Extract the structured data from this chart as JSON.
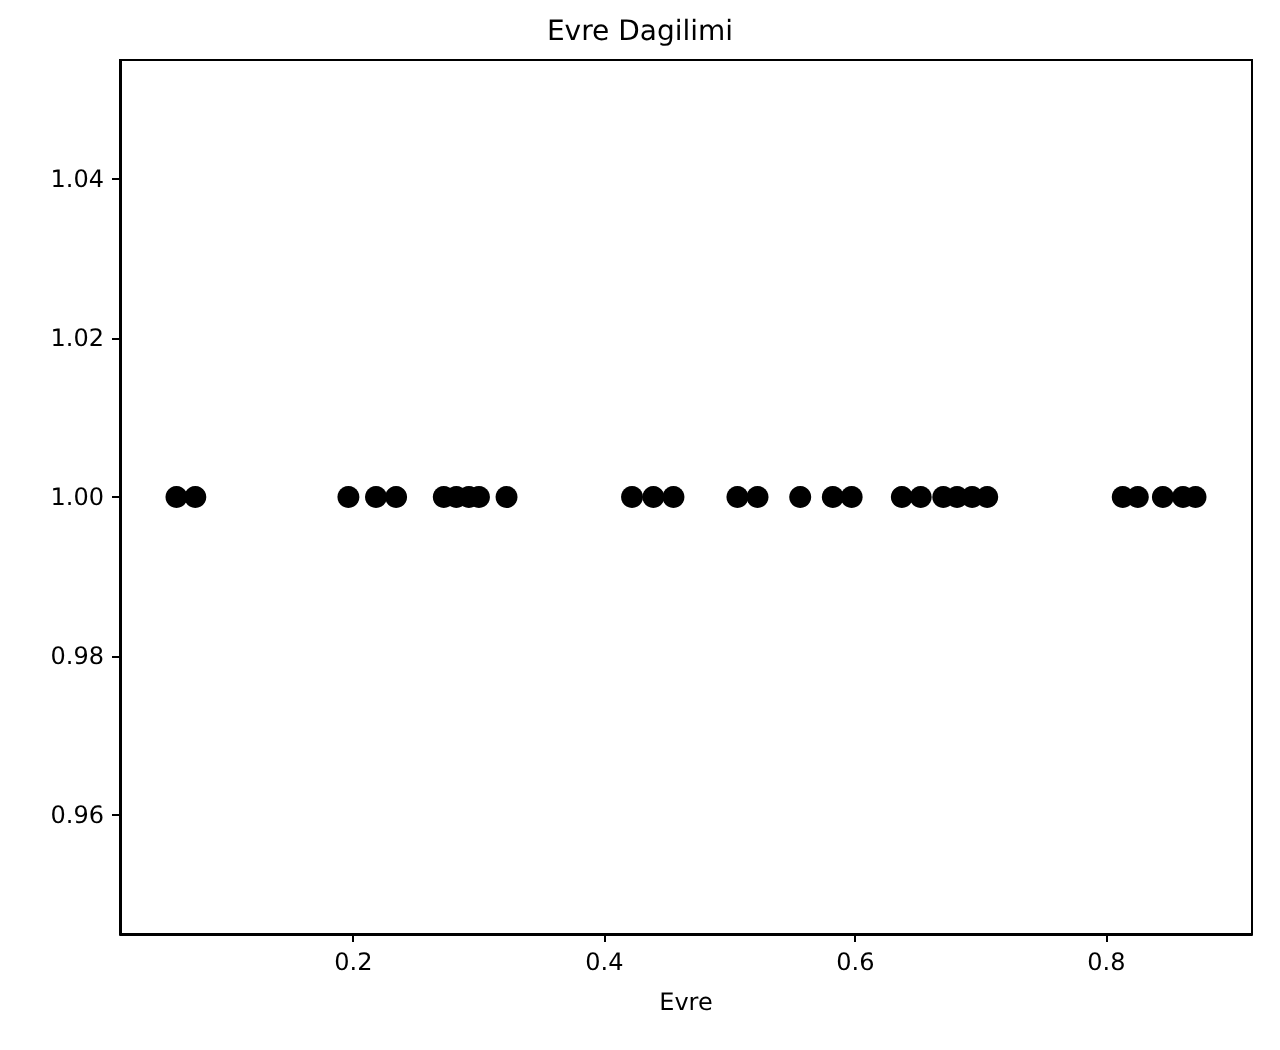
{
  "chart_data": {
    "type": "scatter",
    "title": "Evre Dagilimi",
    "xlabel": "Evre",
    "x": [
      0.059,
      0.074,
      0.196,
      0.218,
      0.234,
      0.272,
      0.282,
      0.292,
      0.3,
      0.322,
      0.422,
      0.439,
      0.455,
      0.506,
      0.522,
      0.556,
      0.582,
      0.597,
      0.637,
      0.652,
      0.67,
      0.681,
      0.693,
      0.705,
      0.813,
      0.825,
      0.845,
      0.861,
      0.871
    ],
    "values": [
      1,
      1,
      1,
      1,
      1,
      1,
      1,
      1,
      1,
      1,
      1,
      1,
      1,
      1,
      1,
      1,
      1,
      1,
      1,
      1,
      1,
      1,
      1,
      1,
      1,
      1,
      1,
      1,
      1
    ],
    "color": "#000000",
    "marker": "circle",
    "xlim": [
      0.014,
      0.916
    ],
    "xticks": [
      0.2,
      0.4,
      0.6,
      0.8
    ],
    "ylim": [
      0.945,
      1.055
    ],
    "yticks": [
      {
        "value": 0.96,
        "label": "0.96"
      },
      {
        "value": 0.98,
        "label": "0.98"
      },
      {
        "value": 1,
        "label": "1.00"
      },
      {
        "value": 1.02,
        "label": "1.02"
      },
      {
        "value": 1.04,
        "label": "1.04"
      }
    ]
  }
}
